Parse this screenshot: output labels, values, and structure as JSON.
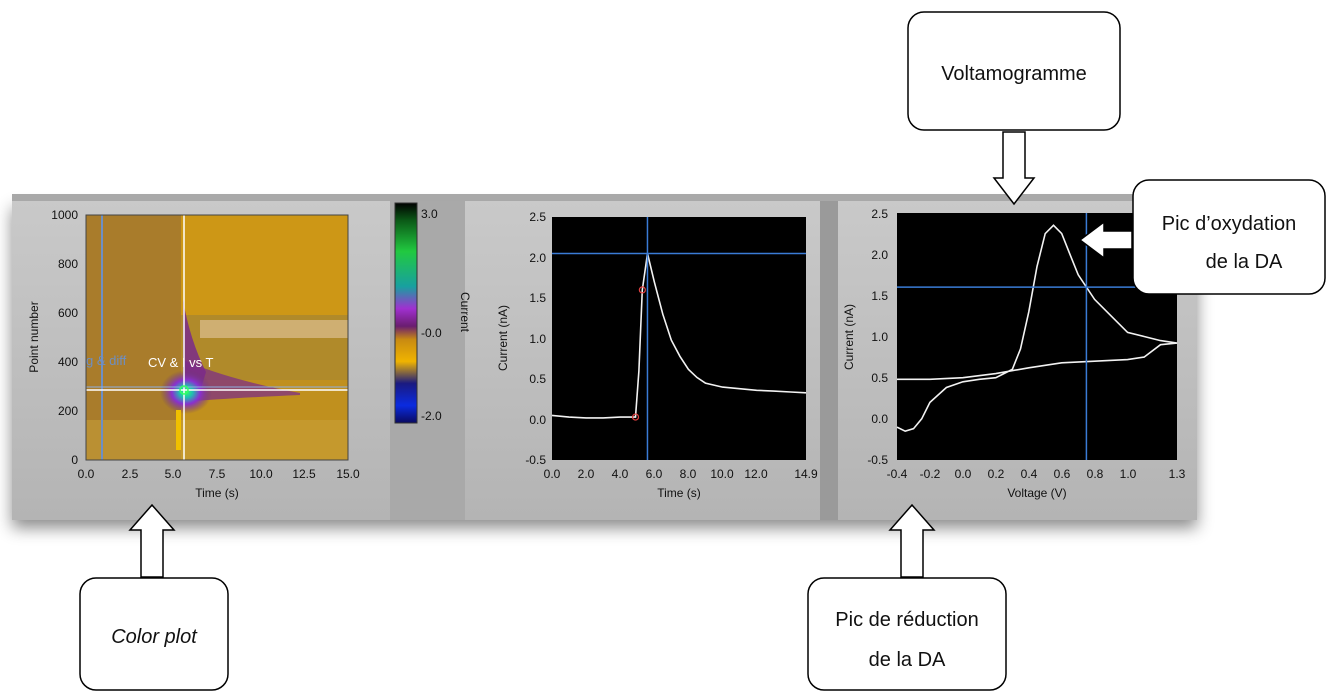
{
  "callouts": {
    "voltamogramme": "Voltamogramme",
    "oxidation_line1": "Pic d’oxydation",
    "oxidation_line2": "de la DA",
    "reduction_line1": "Pic de réduction",
    "reduction_line2": "de la DA",
    "color_plot": "Color plot"
  },
  "color_plot": {
    "ylabel": "Point number",
    "xlabel": "Time (s)",
    "y_ticks": [
      "0",
      "200",
      "400",
      "600",
      "800",
      "1000"
    ],
    "x_ticks": [
      "0.0",
      "2.5",
      "5.0",
      "7.5",
      "10.0",
      "12.5",
      "15.0"
    ],
    "overlay_left": "g & diff",
    "overlay_right": "CV & I vs T",
    "cursor_time": 5.6,
    "cursor_point": 290,
    "colorbar_ticks": [
      "3.0",
      "-0.0",
      "-2.0"
    ],
    "colorbar_label": "Current"
  },
  "chart_data": [
    {
      "type": "line",
      "xlabel": "Time (s)",
      "ylabel": "Current (nA)",
      "xlim": [
        0,
        14.9
      ],
      "ylim": [
        -0.5,
        2.5
      ],
      "x_ticks": [
        "0.0",
        "2.0",
        "4.0",
        "6.0",
        "8.0",
        "10.0",
        "12.0",
        "14.9"
      ],
      "y_ticks": [
        "-0.5",
        "0.0",
        "0.5",
        "1.0",
        "1.5",
        "2.0",
        "2.5"
      ],
      "x": [
        0,
        1,
        2,
        3,
        4,
        4.9,
        5.1,
        5.3,
        5.6,
        6.0,
        6.5,
        7.0,
        7.5,
        8.0,
        8.5,
        9,
        10,
        11,
        12,
        13,
        14,
        14.9
      ],
      "y": [
        0.05,
        0.03,
        0.02,
        0.02,
        0.03,
        0.03,
        0.6,
        1.6,
        2.05,
        1.7,
        1.3,
        0.98,
        0.78,
        0.62,
        0.52,
        0.45,
        0.4,
        0.38,
        0.36,
        0.35,
        0.34,
        0.33
      ],
      "cursor": {
        "x": 5.6,
        "y": 2.05
      },
      "markers": [
        {
          "x": 4.9,
          "y": 0.03
        },
        {
          "x": 5.3,
          "y": 1.6
        }
      ]
    },
    {
      "type": "line",
      "xlabel": "Voltage (V)",
      "ylabel": "Current (nA)",
      "xlim": [
        -0.4,
        1.3
      ],
      "ylim": [
        -0.5,
        2.5
      ],
      "x_ticks": [
        "-0.4",
        "-0.2",
        "0.0",
        "0.2",
        "0.4",
        "0.6",
        "0.8",
        "1.0",
        "1.3"
      ],
      "y_ticks": [
        "-0.5",
        "0.0",
        "0.5",
        "1.0",
        "1.5",
        "2.0",
        "2.5"
      ],
      "x": [
        -0.4,
        -0.35,
        -0.3,
        -0.25,
        -0.2,
        -0.1,
        0.0,
        0.1,
        0.2,
        0.3,
        0.35,
        0.4,
        0.45,
        0.5,
        0.55,
        0.6,
        0.65,
        0.7,
        0.8,
        0.9,
        1.0,
        1.1,
        1.2,
        1.3,
        1.2,
        1.1,
        1.0,
        0.8,
        0.6,
        0.4,
        0.2,
        0.0,
        -0.2,
        -0.4
      ],
      "y": [
        -0.1,
        -0.15,
        -0.12,
        0.0,
        0.2,
        0.38,
        0.45,
        0.48,
        0.5,
        0.6,
        0.85,
        1.3,
        1.85,
        2.25,
        2.35,
        2.25,
        2.0,
        1.75,
        1.45,
        1.25,
        1.05,
        1.0,
        0.95,
        0.92,
        0.9,
        0.75,
        0.72,
        0.7,
        0.68,
        0.62,
        0.55,
        0.5,
        0.48,
        0.48
      ],
      "cursor": {
        "x": 0.75,
        "y": 1.6
      }
    }
  ]
}
